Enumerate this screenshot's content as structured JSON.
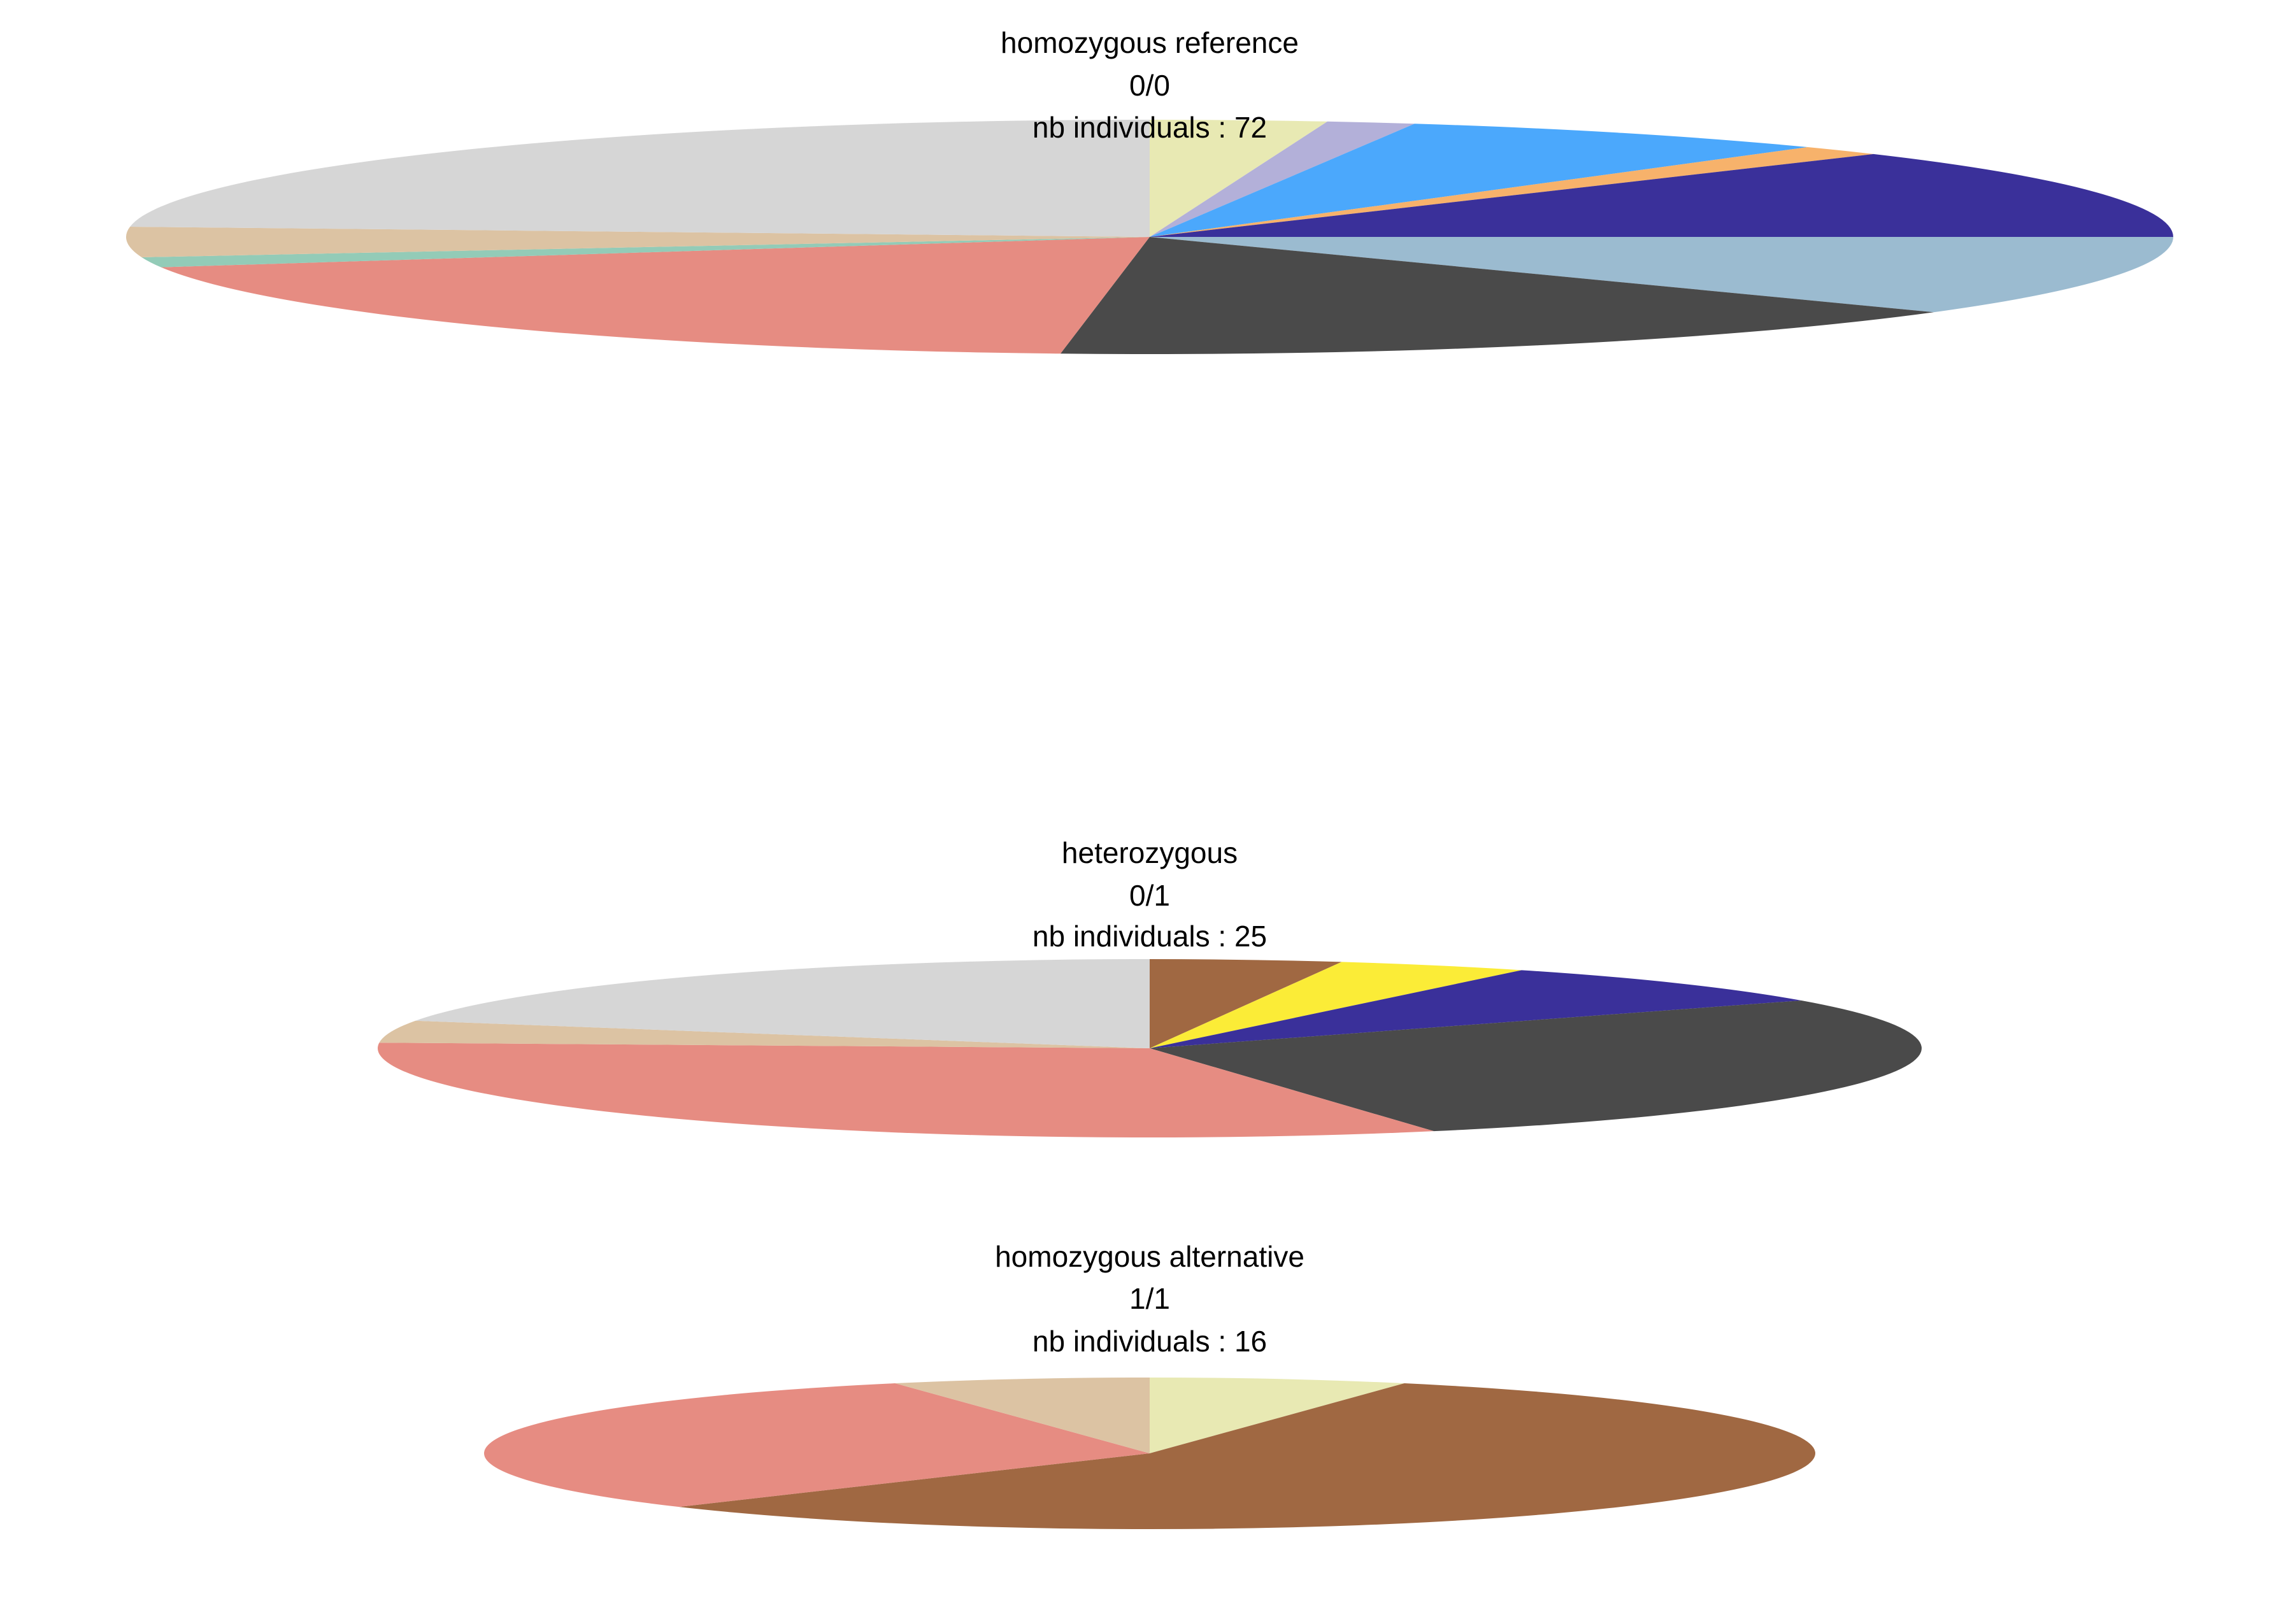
{
  "chart_data": [
    {
      "type": "pie",
      "title": "homozygous reference",
      "subtitle": "0/0",
      "note": "nb individuals : 72",
      "values": [
        2,
        1,
        5,
        1,
        9,
        8,
        11,
        14,
        1,
        3,
        17
      ],
      "colors": [
        "#e8e9b3",
        "#b3b0d9",
        "#4ba8fc",
        "#f7b26b",
        "#3a309a",
        "#9bbbd0",
        "#4a4a4a",
        "#e68c82",
        "#93cbb7",
        "#dcc3a3",
        "#d6d6d6"
      ]
    },
    {
      "type": "pie",
      "title": "heterozygous",
      "subtitle": "0/1",
      "note": "nb individuals : 25",
      "values": [
        1,
        1,
        2,
        7,
        8,
        1,
        5
      ],
      "colors": [
        "#a06842",
        "#fbec37",
        "#3a309a",
        "#4a4a4a",
        "#e68c82",
        "#dcc3a3",
        "#d6d6d6"
      ]
    },
    {
      "type": "pie",
      "title": "homozygous alternative",
      "subtitle": "1/1",
      "note": "nb individuals : 16",
      "values": [
        1,
        9,
        5,
        1
      ],
      "colors": [
        "#e8e9b3",
        "#a06842",
        "#e68c82",
        "#dcc3a3"
      ]
    }
  ]
}
